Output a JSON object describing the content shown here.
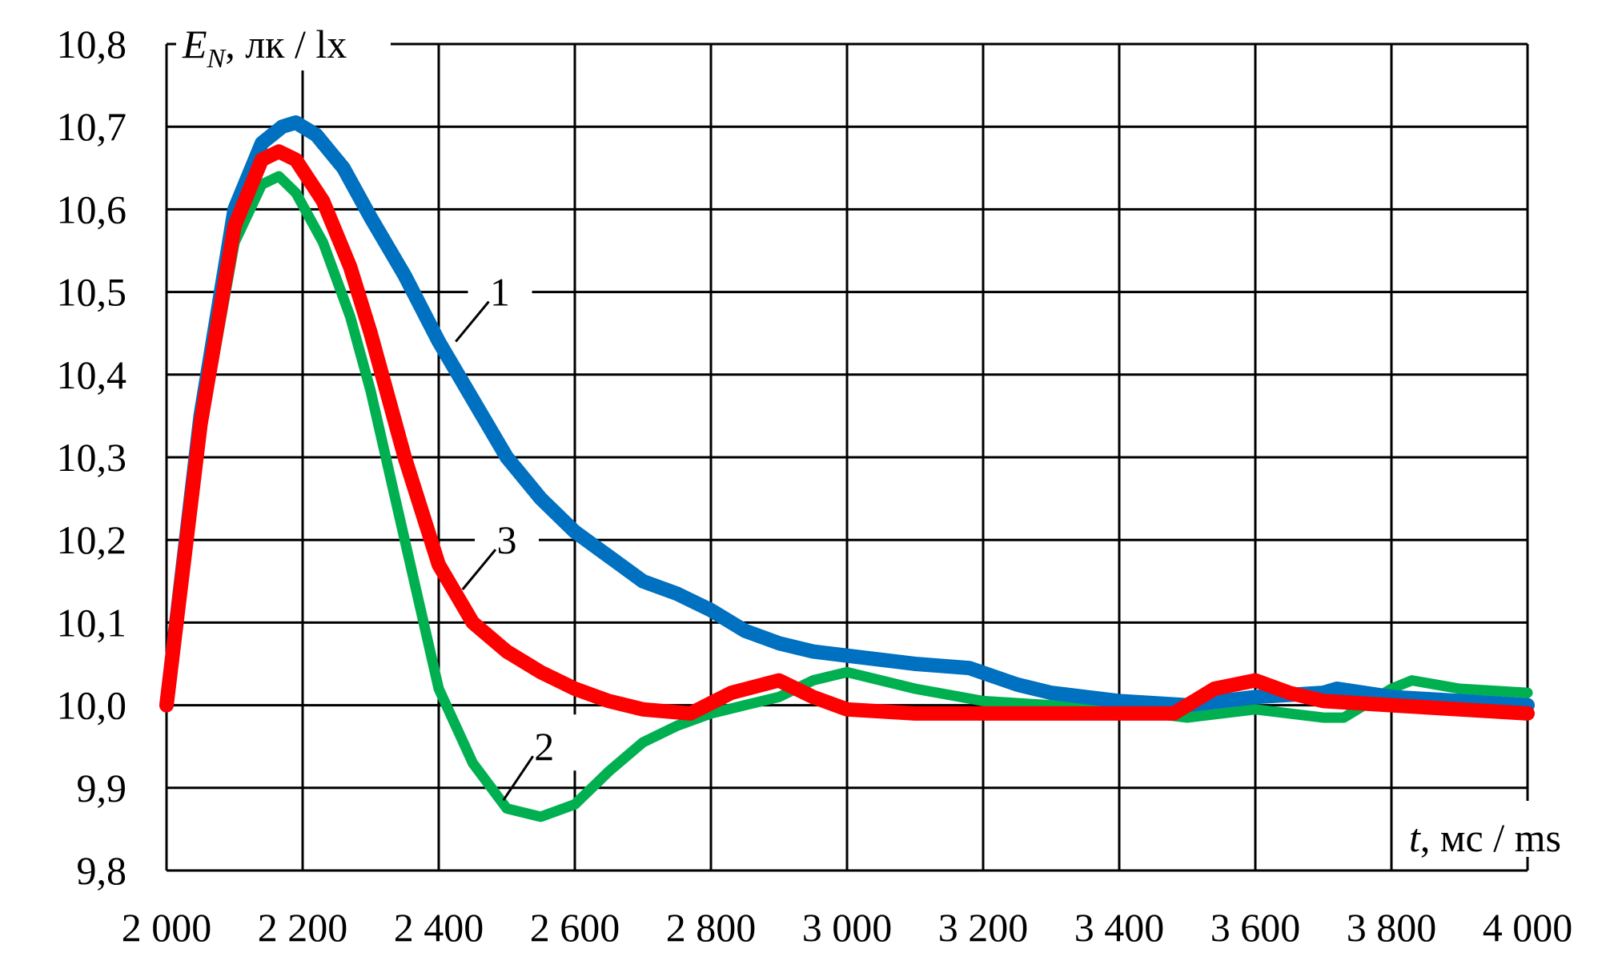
{
  "chart_data": {
    "type": "line",
    "title": "",
    "ylabel": {
      "var": "E",
      "sub": "N",
      "units": ", лк / lx"
    },
    "xlabel": {
      "var": "t",
      "units": ", мс / ms"
    },
    "xlim": [
      2000,
      4000
    ],
    "ylim": [
      9.8,
      10.8
    ],
    "grid": true,
    "x_ticks": [
      2000,
      2200,
      2400,
      2600,
      2800,
      3000,
      3200,
      3400,
      3600,
      3800,
      4000
    ],
    "x_tick_labels": [
      "2 000",
      "2 200",
      "2 400",
      "2 600",
      "2 800",
      "3 000",
      "3 200",
      "3 400",
      "3 600",
      "3 800",
      "4 000"
    ],
    "y_ticks": [
      9.8,
      9.9,
      10.0,
      10.1,
      10.2,
      10.3,
      10.4,
      10.5,
      10.6,
      10.7,
      10.8
    ],
    "y_tick_labels": [
      "9,8",
      "9,9",
      "10,0",
      "10,1",
      "10,2",
      "10,3",
      "10,4",
      "10,5",
      "10,6",
      "10,7",
      "10,8"
    ],
    "series": [
      {
        "name": "1",
        "color": "#0070C0",
        "x": [
          2000,
          2050,
          2100,
          2140,
          2170,
          2190,
          2220,
          2260,
          2300,
          2350,
          2400,
          2450,
          2500,
          2550,
          2600,
          2650,
          2700,
          2750,
          2800,
          2850,
          2900,
          2950,
          3000,
          3100,
          3180,
          3250,
          3300,
          3400,
          3500,
          3600,
          3700,
          3720,
          3800,
          3900,
          4000
        ],
        "y": [
          10.0,
          10.35,
          10.6,
          10.68,
          10.7,
          10.705,
          10.69,
          10.65,
          10.59,
          10.52,
          10.44,
          10.37,
          10.3,
          10.25,
          10.21,
          10.18,
          10.15,
          10.135,
          10.115,
          10.09,
          10.075,
          10.065,
          10.06,
          10.05,
          10.045,
          10.025,
          10.015,
          10.005,
          10.0,
          10.01,
          10.015,
          10.02,
          10.01,
          10.005,
          10.0
        ]
      },
      {
        "name": "2",
        "color": "#00B050",
        "x": [
          2000,
          2050,
          2100,
          2140,
          2165,
          2190,
          2230,
          2270,
          2300,
          2350,
          2400,
          2450,
          2500,
          2550,
          2600,
          2650,
          2700,
          2750,
          2800,
          2850,
          2900,
          2950,
          3000,
          3100,
          3200,
          3300,
          3400,
          3500,
          3600,
          3700,
          3730,
          3800,
          3830,
          3900,
          4000
        ],
        "y": [
          10.0,
          10.33,
          10.56,
          10.63,
          10.64,
          10.62,
          10.56,
          10.47,
          10.38,
          10.2,
          10.02,
          9.93,
          9.875,
          9.865,
          9.88,
          9.92,
          9.955,
          9.975,
          9.99,
          10.0,
          10.01,
          10.03,
          10.04,
          10.02,
          10.005,
          10.0,
          9.995,
          9.985,
          9.995,
          9.985,
          9.985,
          10.02,
          10.03,
          10.02,
          10.015
        ]
      },
      {
        "name": "3",
        "color": "#FF0000",
        "x": [
          2000,
          2050,
          2100,
          2140,
          2165,
          2190,
          2230,
          2270,
          2300,
          2350,
          2400,
          2450,
          2500,
          2550,
          2600,
          2650,
          2700,
          2770,
          2830,
          2900,
          2950,
          3000,
          3100,
          3200,
          3300,
          3400,
          3480,
          3540,
          3600,
          3650,
          3700,
          3800,
          3900,
          4000
        ],
        "y": [
          10.0,
          10.34,
          10.58,
          10.66,
          10.67,
          10.66,
          10.61,
          10.53,
          10.45,
          10.3,
          10.17,
          10.1,
          10.065,
          10.04,
          10.02,
          10.005,
          9.995,
          9.99,
          10.015,
          10.03,
          10.01,
          9.995,
          9.99,
          9.99,
          9.99,
          9.99,
          9.99,
          10.02,
          10.03,
          10.015,
          10.005,
          10.0,
          9.995,
          9.99
        ]
      }
    ],
    "annotations": [
      {
        "text": "1",
        "x": 2490,
        "y": 10.5,
        "to_x": 2425,
        "to_y": 10.44
      },
      {
        "text": "3",
        "x": 2500,
        "y": 10.2,
        "to_x": 2435,
        "to_y": 10.14
      },
      {
        "text": "2",
        "x": 2555,
        "y": 9.95,
        "to_x": 2495,
        "to_y": 9.885
      }
    ]
  }
}
